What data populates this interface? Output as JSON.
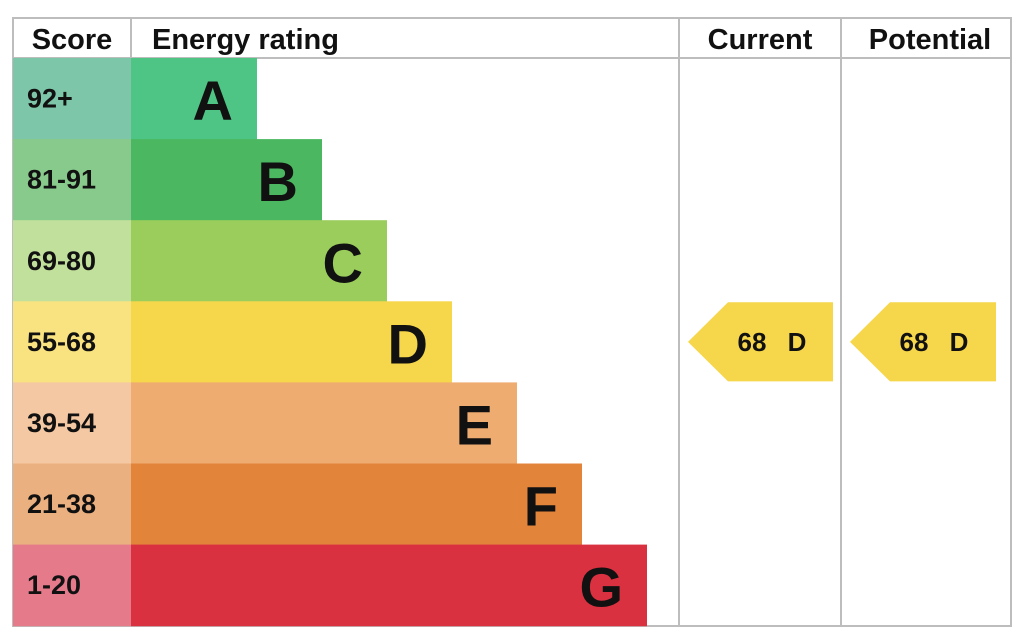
{
  "header": {
    "score": "Score",
    "rating": "Energy rating",
    "current": "Current",
    "potential": "Potential"
  },
  "bands": [
    {
      "score": "92+",
      "letter": "A",
      "color": "#4fc585",
      "score_color": "#7dc6a9"
    },
    {
      "score": "81-91",
      "letter": "B",
      "color": "#4bb861",
      "score_color": "#88c98c"
    },
    {
      "score": "69-80",
      "letter": "C",
      "color": "#9acd5b",
      "score_color": "#c0e09b"
    },
    {
      "score": "55-68",
      "letter": "D",
      "color": "#f6d64b",
      "score_color": "#f9e380"
    },
    {
      "score": "39-54",
      "letter": "E",
      "color": "#efac71",
      "score_color": "#f4c8a3"
    },
    {
      "score": "21-38",
      "letter": "F",
      "color": "#e3843b",
      "score_color": "#ebb080"
    },
    {
      "score": "1-20",
      "letter": "G",
      "color": "#d93140",
      "score_color": "#e57a8b"
    }
  ],
  "current": {
    "value": 68,
    "band": "D",
    "color": "#f6d64b"
  },
  "potential": {
    "value": 68,
    "band": "D",
    "color": "#f6d64b"
  }
}
